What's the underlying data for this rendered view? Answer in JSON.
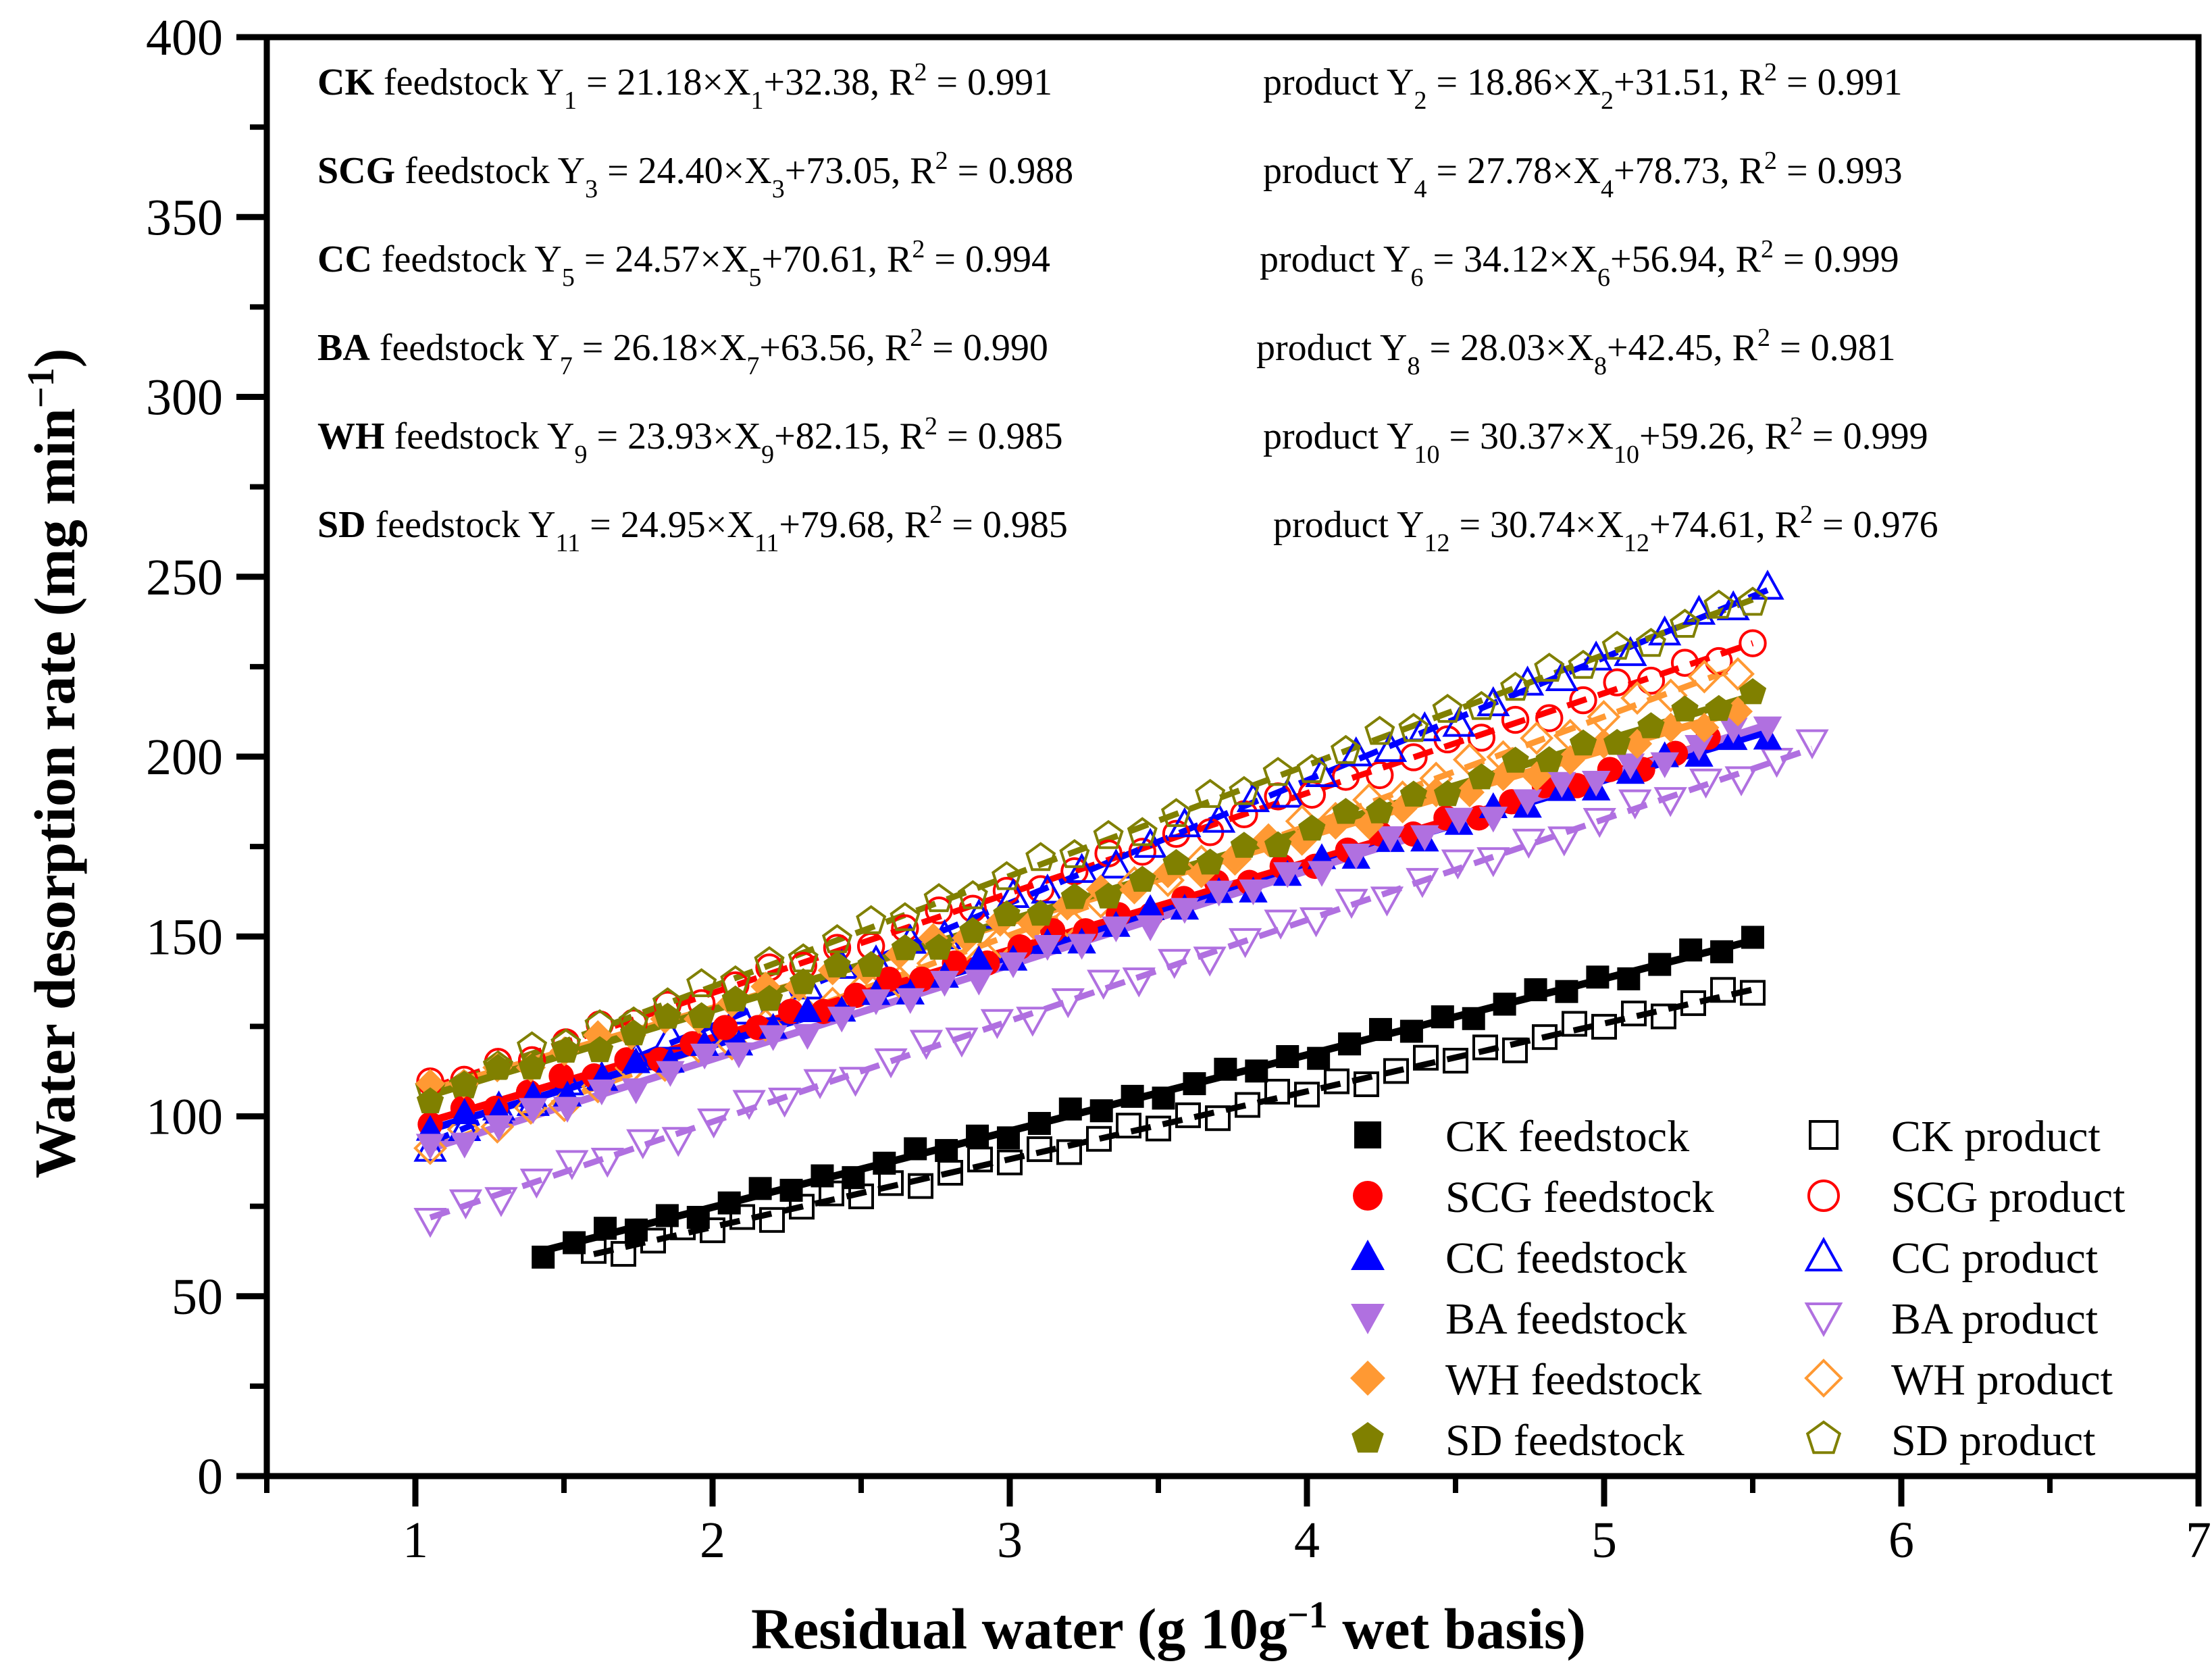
{
  "chart_data": {
    "type": "scatter",
    "title": "",
    "xlabel": "Residual water (g 10g",
    "xlabel_sup": "−1",
    "xlabel_tail": " wet basis)",
    "ylabel": "Water desorption rate (mg min",
    "ylabel_sup": "−1",
    "ylabel_tail": ")",
    "xlim": [
      0.5,
      7
    ],
    "ylim": [
      0,
      400
    ],
    "xticks": [
      "1",
      "2",
      "3",
      "4",
      "5",
      "6",
      "7"
    ],
    "yticks": [
      "0",
      "50",
      "100",
      "150",
      "200",
      "250",
      "300",
      "350",
      "400"
    ],
    "series": [
      {
        "name": "CK feedstock",
        "color": "#000000",
        "marker": "square",
        "filled": true,
        "x_range": [
          1.43,
          5.5
        ],
        "slope": 21.18,
        "intercept": 32.38
      },
      {
        "name": "CK product",
        "color": "#000000",
        "marker": "square",
        "filled": false,
        "x_range": [
          1.6,
          5.5
        ],
        "slope": 18.86,
        "intercept": 31.51
      },
      {
        "name": "SCG feedstock",
        "color": "#ff0000",
        "marker": "circle",
        "filled": true,
        "x_range": [
          1.05,
          5.35
        ],
        "slope": 24.4,
        "intercept": 73.05
      },
      {
        "name": "SCG product",
        "color": "#ff0000",
        "marker": "circle",
        "filled": false,
        "x_range": [
          1.05,
          5.5
        ],
        "slope": 27.78,
        "intercept": 78.73
      },
      {
        "name": "CC feedstock",
        "color": "#0000ff",
        "marker": "triangle-up",
        "filled": true,
        "x_range": [
          1.05,
          5.55
        ],
        "slope": 24.57,
        "intercept": 70.61
      },
      {
        "name": "CC product",
        "color": "#0000ff",
        "marker": "triangle-up",
        "filled": false,
        "x_range": [
          1.05,
          5.55
        ],
        "slope": 34.12,
        "intercept": 56.94
      },
      {
        "name": "BA feedstock",
        "color": "#b070e0",
        "marker": "triangle-down",
        "filled": true,
        "x_range": [
          1.05,
          5.55
        ],
        "slope": 26.18,
        "intercept": 63.56
      },
      {
        "name": "BA product",
        "color": "#b070e0",
        "marker": "triangle-down",
        "filled": false,
        "x_range": [
          1.05,
          5.7
        ],
        "slope": 28.03,
        "intercept": 42.45
      },
      {
        "name": "WH feedstock",
        "color": "#ff9933",
        "marker": "diamond",
        "filled": true,
        "x_range": [
          1.05,
          5.45
        ],
        "slope": 23.93,
        "intercept": 82.15
      },
      {
        "name": "WH product",
        "color": "#ff9933",
        "marker": "diamond",
        "filled": false,
        "x_range": [
          1.05,
          5.45
        ],
        "slope": 30.37,
        "intercept": 59.26
      },
      {
        "name": "SD feedstock",
        "color": "#808000",
        "marker": "pentagon",
        "filled": true,
        "x_range": [
          1.05,
          5.5
        ],
        "slope": 24.95,
        "intercept": 79.68
      },
      {
        "name": "SD product",
        "color": "#808000",
        "marker": "pentagon",
        "filled": false,
        "x_range": [
          1.05,
          5.5
        ],
        "slope": 30.74,
        "intercept": 74.61
      }
    ],
    "equations": [
      {
        "sample": "CK",
        "feed_text": " feedstock Y",
        "feed_sub": "1",
        "feed_mid": " = 21.18×X",
        "feed_sub2": "1",
        "feed_end": "+32.38, R",
        "feed_r2": "2",
        "feed_val": " = 0.991",
        "prod_text": "product Y",
        "prod_sub": "2",
        "prod_mid": " = 18.86×X",
        "prod_sub2": "2",
        "prod_end": "+31.51, R",
        "prod_r2": "2",
        "prod_val": " = 0.991"
      },
      {
        "sample": "SCG",
        "feed_text": " feedstock Y",
        "feed_sub": "3",
        "feed_mid": " = 24.40×X",
        "feed_sub2": "3",
        "feed_end": "+73.05, R",
        "feed_r2": "2",
        "feed_val": " = 0.988",
        "prod_text": "product Y",
        "prod_sub": "4",
        "prod_mid": " = 27.78×X",
        "prod_sub2": "4",
        "prod_end": "+78.73, R",
        "prod_r2": "2",
        "prod_val": " = 0.993"
      },
      {
        "sample": "CC",
        "feed_text": " feedstock Y",
        "feed_sub": "5",
        "feed_mid": " = 24.57×X",
        "feed_sub2": "5",
        "feed_end": "+70.61, R",
        "feed_r2": "2",
        "feed_val": " = 0.994",
        "prod_text": "product Y",
        "prod_sub": "6",
        "prod_mid": " = 34.12×X",
        "prod_sub2": "6",
        "prod_end": "+56.94, R",
        "prod_r2": "2",
        "prod_val": " = 0.999"
      },
      {
        "sample": "BA",
        "feed_text": " feedstock Y",
        "feed_sub": "7",
        "feed_mid": " = 26.18×X",
        "feed_sub2": "7",
        "feed_end": "+63.56, R",
        "feed_r2": "2",
        "feed_val": " = 0.990",
        "prod_text": "product Y",
        "prod_sub": "8",
        "prod_mid": " = 28.03×X",
        "prod_sub2": "8",
        "prod_end": "+42.45, R",
        "prod_r2": "2",
        "prod_val": " = 0.981"
      },
      {
        "sample": "WH",
        "feed_text": " feedstock Y",
        "feed_sub": "9",
        "feed_mid": " = 23.93×X",
        "feed_sub2": "9",
        "feed_end": "+82.15, R",
        "feed_r2": "2",
        "feed_val": " = 0.985",
        "prod_text": "product Y",
        "prod_sub": "10",
        "prod_mid": " = 30.37×X",
        "prod_sub2": "10",
        "prod_end": "+59.26, R",
        "prod_r2": "2",
        "prod_val": " = 0.999"
      },
      {
        "sample": "SD",
        "feed_text": " feedstock Y",
        "feed_sub": "11",
        "feed_mid": " = 24.95×X",
        "feed_sub2": "11",
        "feed_end": "+79.68, R",
        "feed_r2": "2",
        "feed_val": " = 0.985",
        "prod_text": "product Y",
        "prod_sub": "12",
        "prod_mid": " = 30.74×X",
        "prod_sub2": "12",
        "prod_end": "+74.61, R",
        "prod_r2": "2",
        "prod_val": " = 0.976"
      }
    ],
    "legend_position": "bottom-right"
  }
}
